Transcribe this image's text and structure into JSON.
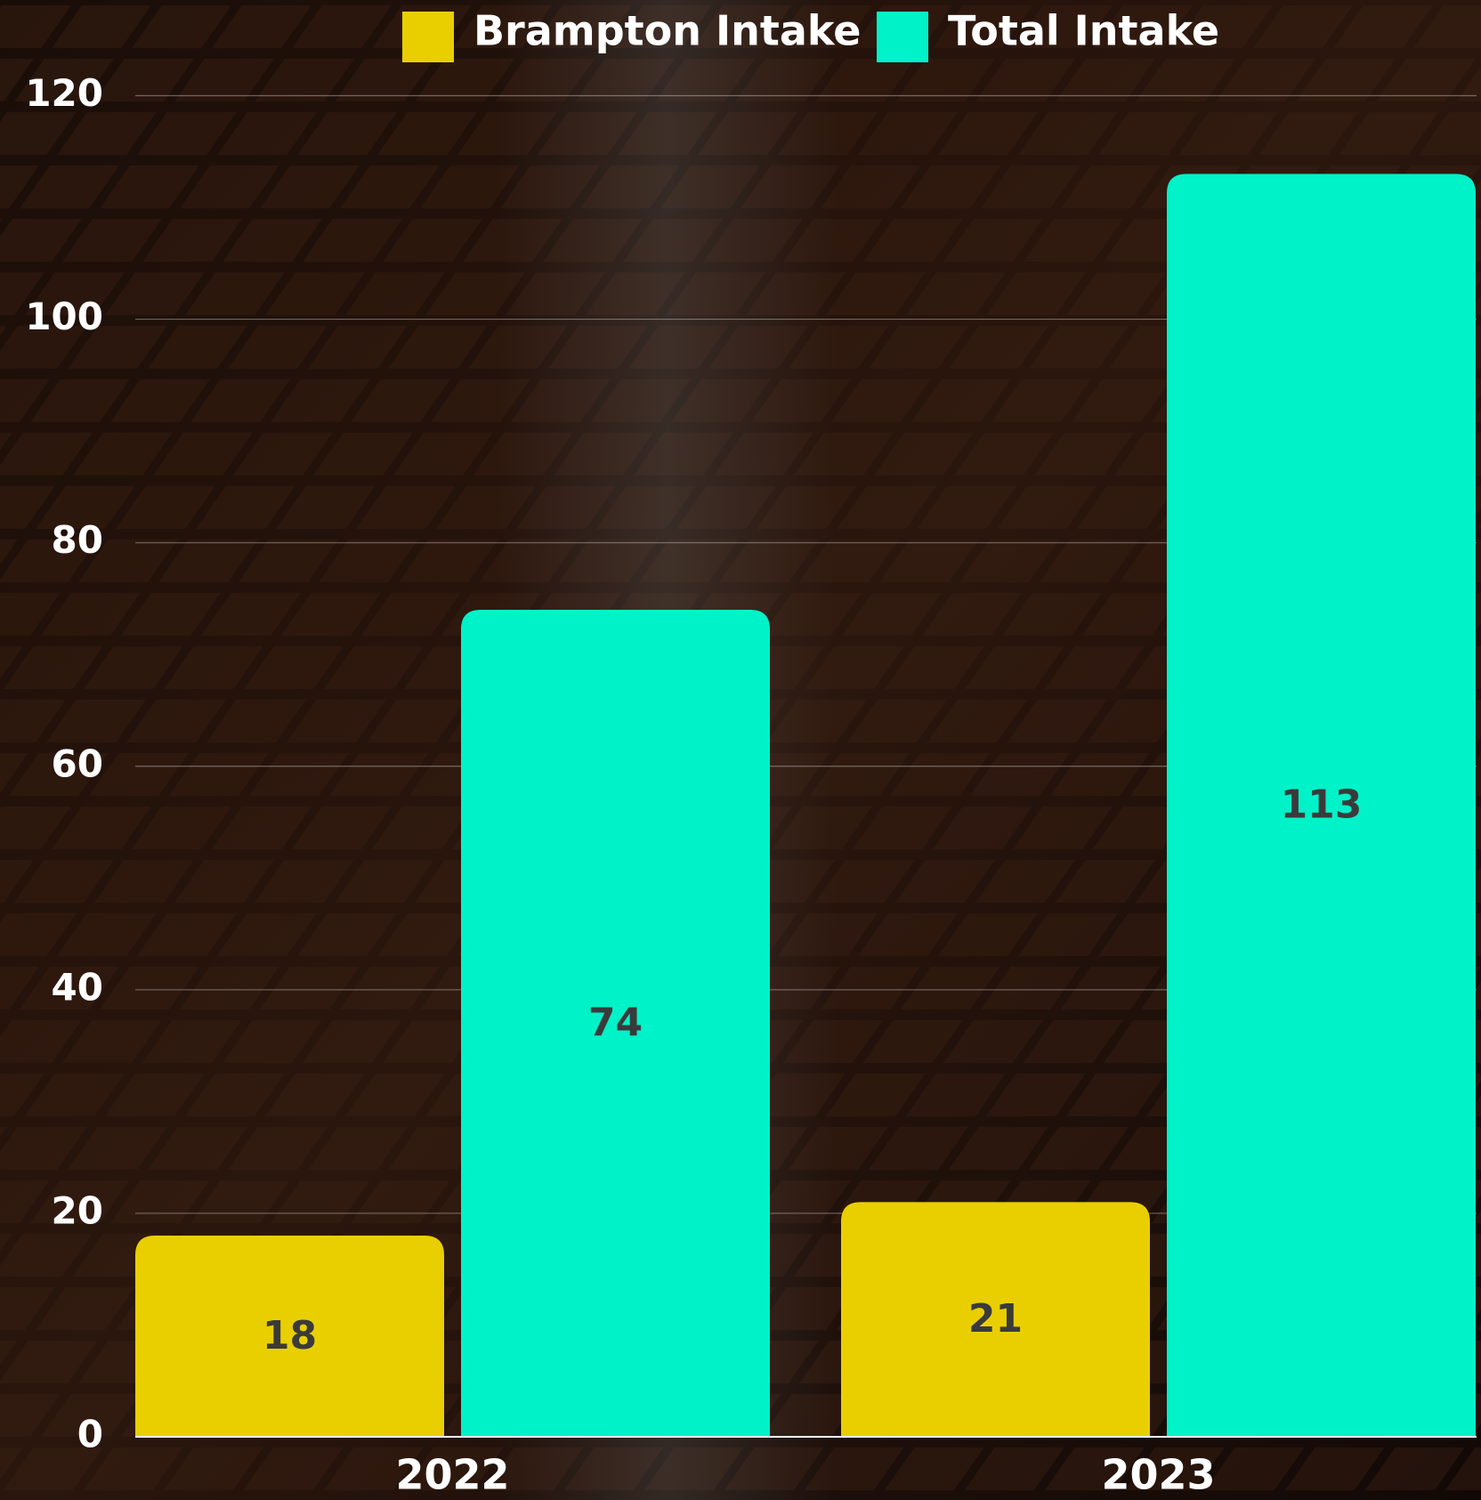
{
  "chart_data": {
    "type": "bar",
    "categories": [
      "2022",
      "2023"
    ],
    "series": [
      {
        "name": "Brampton Intake",
        "color": "#e9cf00",
        "values": [
          18,
          21
        ]
      },
      {
        "name": "Total Intake",
        "color": "#00f2c8",
        "values": [
          74,
          113
        ]
      }
    ],
    "ylim": [
      0,
      120
    ],
    "yticks": [
      0,
      20,
      40,
      60,
      80,
      100,
      120
    ],
    "grid": true,
    "legend": "top"
  }
}
